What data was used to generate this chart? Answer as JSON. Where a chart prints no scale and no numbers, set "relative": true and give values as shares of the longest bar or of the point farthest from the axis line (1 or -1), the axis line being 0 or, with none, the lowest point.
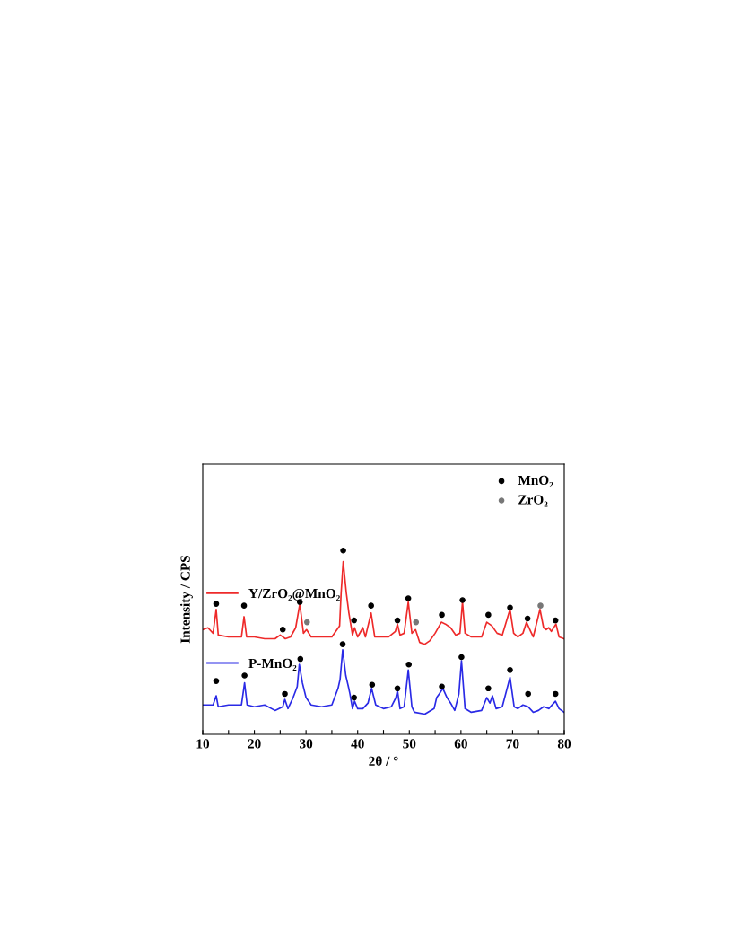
{
  "chart_data": {
    "type": "line",
    "relative": true,
    "xlabel": "2θ / °",
    "ylabel": "Intensity / CPS",
    "xlim": [
      10,
      80
    ],
    "xticks": [
      10,
      {
        "value": 15,
        "label": null
      },
      20,
      {
        "value": 25,
        "label": null
      },
      30,
      {
        "value": 35,
        "label": null
      },
      40,
      {
        "value": 45,
        "label": null
      },
      50,
      {
        "value": 55,
        "label": null
      },
      60,
      {
        "value": 65,
        "label": null
      },
      70,
      {
        "value": 75,
        "label": null
      },
      80
    ],
    "grid": false,
    "legend": "top right",
    "marker": "none",
    "line_style": "solid",
    "series": [
      {
        "name": "Y/ZrO₂@MnO₂",
        "color": "#ee2a2a",
        "x": [
          10,
          11,
          12,
          12.6,
          13,
          15,
          17.5,
          18,
          18.5,
          20,
          22,
          24,
          25,
          26,
          27,
          28,
          28.8,
          29.5,
          30.1,
          31,
          33,
          35,
          36.5,
          36.8,
          37.2,
          37.8,
          38.3,
          39,
          39.4,
          40,
          41,
          41.5,
          42.6,
          43.3,
          45,
          46,
          47.3,
          47.7,
          48.2,
          49,
          49.8,
          50.5,
          51.2,
          52,
          53,
          54,
          55,
          56.2,
          57,
          58,
          59,
          59.8,
          60.3,
          60.8,
          62,
          63,
          64,
          65,
          65.5,
          66,
          67,
          68,
          69.5,
          70.2,
          71,
          72,
          72.7,
          73.5,
          74,
          75.3,
          76,
          76.5,
          77,
          77.5,
          78.4,
          79,
          80
        ],
        "values": [
          0.57,
          0.58,
          0.55,
          0.68,
          0.54,
          0.53,
          0.53,
          0.64,
          0.53,
          0.53,
          0.52,
          0.52,
          0.54,
          0.52,
          0.53,
          0.58,
          0.71,
          0.55,
          0.57,
          0.53,
          0.53,
          0.53,
          0.59,
          0.77,
          0.94,
          0.77,
          0.66,
          0.54,
          0.58,
          0.53,
          0.58,
          0.53,
          0.66,
          0.53,
          0.53,
          0.53,
          0.56,
          0.6,
          0.54,
          0.55,
          0.72,
          0.55,
          0.57,
          0.5,
          0.49,
          0.51,
          0.55,
          0.61,
          0.6,
          0.58,
          0.54,
          0.55,
          0.72,
          0.55,
          0.53,
          0.53,
          0.53,
          0.61,
          0.6,
          0.59,
          0.55,
          0.54,
          0.68,
          0.55,
          0.53,
          0.55,
          0.61,
          0.56,
          0.53,
          0.68,
          0.58,
          0.57,
          0.58,
          0.56,
          0.6,
          0.53,
          0.52
        ]
      },
      {
        "name": "P-MnO₂",
        "color": "#2a2ae6",
        "x": [
          10,
          12,
          12.6,
          13,
          15,
          17.5,
          18.1,
          18.6,
          20,
          22,
          24,
          25.5,
          25.9,
          26.5,
          27.5,
          28.3,
          28.7,
          29.3,
          30,
          31,
          33,
          35,
          36.2,
          36.6,
          37.1,
          37.7,
          38.2,
          38.5,
          39,
          39.4,
          40,
          41,
          42,
          42.7,
          43.5,
          45,
          46.5,
          47.4,
          47.7,
          48.2,
          49,
          49.8,
          50.5,
          51,
          53,
          54.8,
          55.3,
          55.8,
          56.5,
          57.3,
          58,
          58.8,
          59.6,
          60.1,
          60.8,
          62,
          64,
          65,
          65.6,
          66.1,
          66.8,
          68,
          69.5,
          70.3,
          71,
          72,
          73,
          74,
          75,
          76,
          77,
          78.3,
          79,
          80
        ],
        "values": [
          0.16,
          0.16,
          0.21,
          0.15,
          0.16,
          0.16,
          0.28,
          0.16,
          0.15,
          0.16,
          0.13,
          0.15,
          0.19,
          0.14,
          0.2,
          0.26,
          0.38,
          0.28,
          0.2,
          0.16,
          0.15,
          0.16,
          0.25,
          0.3,
          0.46,
          0.32,
          0.26,
          0.22,
          0.14,
          0.18,
          0.14,
          0.14,
          0.17,
          0.25,
          0.16,
          0.14,
          0.15,
          0.2,
          0.24,
          0.14,
          0.15,
          0.35,
          0.15,
          0.12,
          0.11,
          0.14,
          0.2,
          0.22,
          0.25,
          0.2,
          0.17,
          0.13,
          0.22,
          0.4,
          0.14,
          0.12,
          0.13,
          0.2,
          0.17,
          0.21,
          0.14,
          0.15,
          0.31,
          0.15,
          0.14,
          0.16,
          0.15,
          0.12,
          0.13,
          0.15,
          0.14,
          0.18,
          0.14,
          0.12
        ]
      },
      {
        "name": "MnO₂",
        "type": "scatter",
        "marker": "circle",
        "color": "#000000",
        "x": [
          12.6,
          18,
          25.5,
          28.8,
          37.2,
          39.3,
          42.6,
          47.7,
          49.8,
          56.3,
          60.3,
          65.3,
          69.5,
          72.9,
          78.3,
          12.6,
          18.1,
          25.9,
          28.9,
          37.1,
          39.3,
          42.8,
          47.7,
          49.9,
          56.3,
          60.1,
          65.3,
          69.5,
          73,
          78.3
        ],
        "values": [
          0.71,
          0.7,
          0.57,
          0.72,
          1.0,
          0.62,
          0.7,
          0.62,
          0.74,
          0.65,
          0.73,
          0.65,
          0.69,
          0.63,
          0.62,
          0.29,
          0.32,
          0.22,
          0.41,
          0.49,
          0.2,
          0.27,
          0.25,
          0.38,
          0.26,
          0.42,
          0.25,
          0.35,
          0.22,
          0.22
        ]
      },
      {
        "name": "ZrO₂",
        "type": "scatter",
        "marker": "circle",
        "color": "#777777",
        "x": [
          30.2,
          51.3,
          75.4
        ],
        "values": [
          0.61,
          0.61,
          0.7
        ]
      }
    ]
  }
}
